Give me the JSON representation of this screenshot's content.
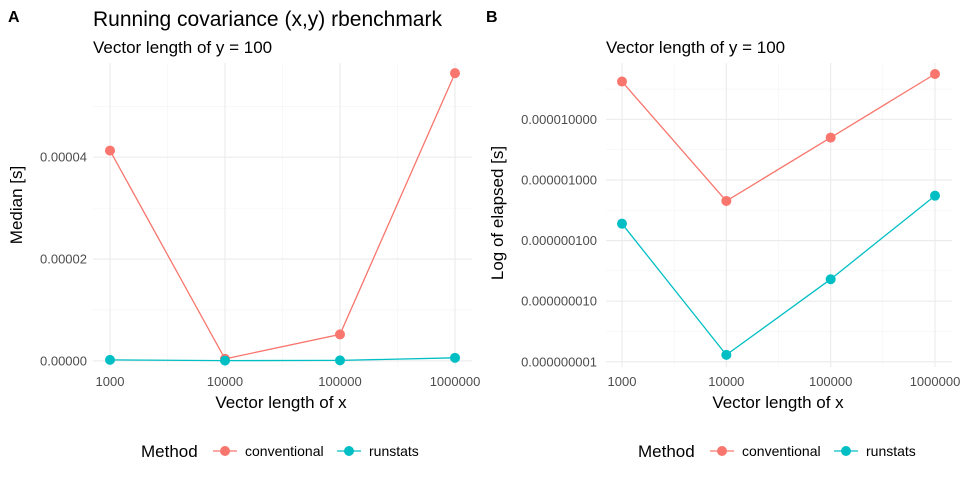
{
  "panel_labels": [
    "A",
    "B"
  ],
  "legend": {
    "title": "Method",
    "entries": [
      {
        "label": "conventional",
        "color": "#F8766D"
      },
      {
        "label": "runstats",
        "color": "#00BFC4"
      }
    ]
  },
  "chart_data": [
    {
      "type": "line",
      "panel": "A",
      "title": "Running covariance (x,y) rbenchmark",
      "subtitle": "Vector length of y = 100",
      "xlabel": "Vector length of x",
      "ylabel": "Median [s]",
      "categories": [
        "1000",
        "10000",
        "100000",
        "1000000"
      ],
      "ylim": [
        -1.2e-06,
        5.85e-05
      ],
      "yticks": [
        0,
        2e-05,
        4e-05
      ],
      "ytick_labels": [
        "0.00000",
        "0.00002",
        "0.00004"
      ],
      "grid": true,
      "series": [
        {
          "name": "conventional",
          "color": "#F8766D",
          "values": [
            4.13e-05,
            4e-07,
            5.2e-06,
            5.65e-05
          ]
        },
        {
          "name": "runstats",
          "color": "#00BFC4",
          "values": [
            2e-07,
            5e-08,
            1e-07,
            6e-07
          ]
        }
      ]
    },
    {
      "type": "line",
      "panel": "B",
      "title": "",
      "subtitle": "Vector length of y = 100",
      "xlabel": "Vector length of x",
      "ylabel": "Log of elapsed [s]",
      "categories": [
        "1000",
        "10000",
        "100000",
        "1000000"
      ],
      "yscale": "log10",
      "ylim": [
        8.2e-10,
        8.5e-05
      ],
      "yticks": [
        1e-09,
        1e-08,
        1e-07,
        1e-06,
        1e-05
      ],
      "ytick_labels": [
        "0.000000001",
        "0.000000010",
        "0.000000100",
        "0.000001000",
        "0.000010000"
      ],
      "grid": true,
      "series": [
        {
          "name": "conventional",
          "color": "#F8766D",
          "values": [
            4.2e-05,
            4.5e-07,
            5e-06,
            5.6e-05
          ]
        },
        {
          "name": "runstats",
          "color": "#00BFC4",
          "values": [
            1.9e-07,
            1.3e-09,
            2.3e-08,
            5.5e-07
          ]
        }
      ]
    }
  ]
}
